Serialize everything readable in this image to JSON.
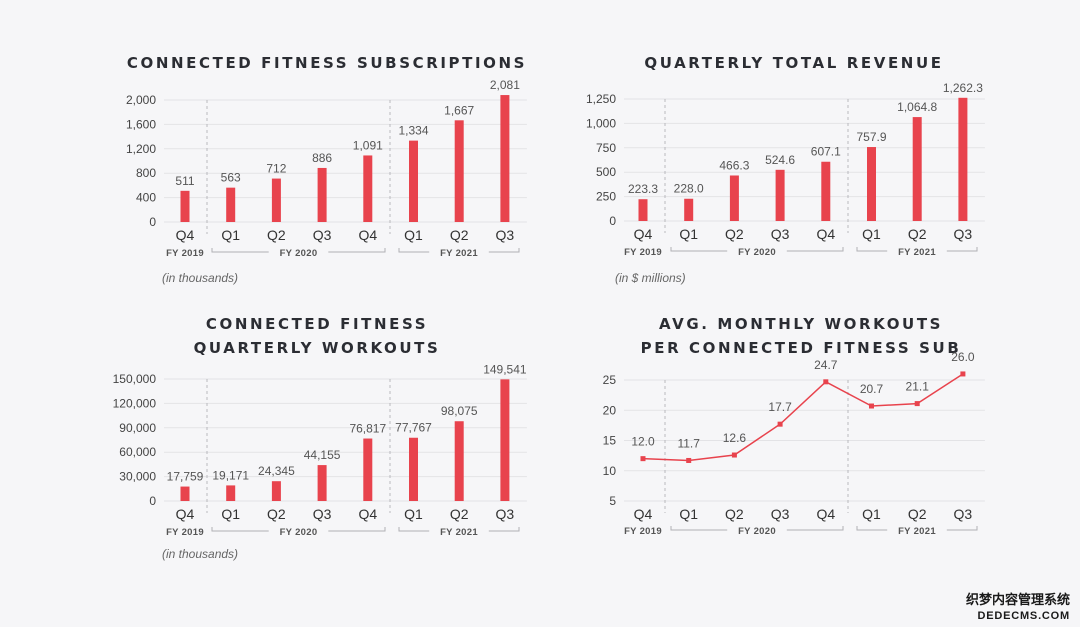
{
  "colors": {
    "bar": "#e8434d",
    "line": "#e8434d",
    "title": "#2b2d33"
  },
  "fiscal_labels": {
    "fy2019": "FY 2019",
    "fy2020": "FY 2020",
    "fy2021": "FY 2021"
  },
  "watermark": {
    "line1": "织梦内容管理系统",
    "line2": "DEDECMS.COM"
  },
  "chart_data": [
    {
      "type": "bar",
      "title": [
        "CONNECTED FITNESS SUBSCRIPTIONS"
      ],
      "categories": [
        "Q4",
        "Q1",
        "Q2",
        "Q3",
        "Q4",
        "Q1",
        "Q2",
        "Q3"
      ],
      "values": [
        511,
        563,
        712,
        886,
        1091,
        1334,
        1667,
        2081
      ],
      "value_labels": [
        "511",
        "563",
        "712",
        "886",
        "1,091",
        "1,334",
        "1,667",
        "2,081"
      ],
      "yticks": [
        0,
        400,
        800,
        1200,
        1600,
        2000
      ],
      "ytick_labels": [
        "0",
        "400",
        "800",
        "1,200",
        "1,600",
        "2,000"
      ],
      "ylim": [
        0,
        2000
      ],
      "fiscal_years": [
        "FY 2019",
        "FY 2020",
        "FY 2021"
      ],
      "note": "(in thousands)",
      "grid": true
    },
    {
      "type": "bar",
      "title": [
        "QUARTERLY TOTAL REVENUE"
      ],
      "categories": [
        "Q4",
        "Q1",
        "Q2",
        "Q3",
        "Q4",
        "Q1",
        "Q2",
        "Q3"
      ],
      "values": [
        223.3,
        228.0,
        466.3,
        524.6,
        607.1,
        757.9,
        1064.8,
        1262.3
      ],
      "value_labels": [
        "223.3",
        "228.0",
        "466.3",
        "524.6",
        "607.1",
        "757.9",
        "1,064.8",
        "1,262.3"
      ],
      "yticks": [
        0,
        250,
        500,
        750,
        1000,
        1250
      ],
      "ytick_labels": [
        "0",
        "250",
        "500",
        "750",
        "1,000",
        "1,250"
      ],
      "ylim": [
        0,
        1250
      ],
      "fiscal_years": [
        "FY 2019",
        "FY 2020",
        "FY 2021"
      ],
      "note": "(in $ millions)",
      "grid": true
    },
    {
      "type": "bar",
      "title": [
        "CONNECTED FITNESS",
        "QUARTERLY WORKOUTS"
      ],
      "categories": [
        "Q4",
        "Q1",
        "Q2",
        "Q3",
        "Q4",
        "Q1",
        "Q2",
        "Q3"
      ],
      "values": [
        17759,
        19171,
        24345,
        44155,
        76817,
        77767,
        98075,
        149541
      ],
      "value_labels": [
        "17,759",
        "19,171",
        "24,345",
        "44,155",
        "76,817",
        "77,767",
        "98,075",
        "149,541"
      ],
      "yticks": [
        0,
        30000,
        60000,
        90000,
        120000,
        150000
      ],
      "ytick_labels": [
        "0",
        "30,000",
        "60,000",
        "90,000",
        "120,000",
        "150,000"
      ],
      "ylim": [
        0,
        150000
      ],
      "fiscal_years": [
        "FY 2019",
        "FY 2020",
        "FY 2021"
      ],
      "note": "(in thousands)",
      "grid": true
    },
    {
      "type": "line",
      "title": [
        "AVG. MONTHLY WORKOUTS",
        "PER CONNECTED FITNESS SUB"
      ],
      "categories": [
        "Q4",
        "Q1",
        "Q2",
        "Q3",
        "Q4",
        "Q1",
        "Q2",
        "Q3"
      ],
      "values": [
        12.0,
        11.7,
        12.6,
        17.7,
        24.7,
        20.7,
        21.1,
        26.0
      ],
      "value_labels": [
        "12.0",
        "11.7",
        "12.6",
        "17.7",
        "24.7",
        "20.7",
        "21.1",
        "26.0"
      ],
      "yticks": [
        5,
        10,
        15,
        20,
        25
      ],
      "ytick_labels": [
        "5",
        "10",
        "15",
        "20",
        "25"
      ],
      "ylim": [
        5,
        25
      ],
      "fiscal_years": [
        "FY 2019",
        "FY 2020",
        "FY 2021"
      ],
      "note": "",
      "grid": true
    }
  ]
}
